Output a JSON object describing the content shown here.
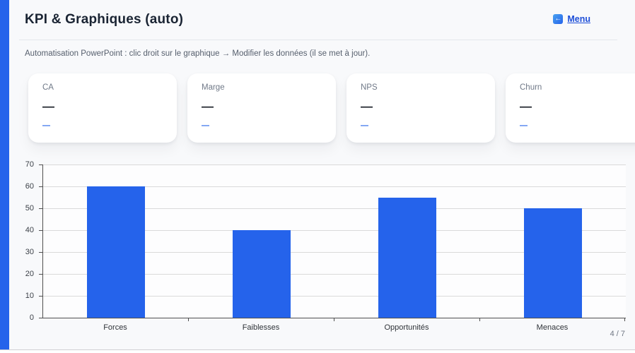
{
  "header": {
    "title": "KPI & Graphiques (auto)",
    "menu": {
      "label": "Menu",
      "icon_glyph": "←"
    }
  },
  "note": "Automatisation PowerPoint : clic droit sur le graphique → Modifier les données (il se met à jour).",
  "kpis": [
    {
      "label": "CA",
      "value": "—",
      "sub": "—"
    },
    {
      "label": "Marge",
      "value": "—",
      "sub": "—"
    },
    {
      "label": "NPS",
      "value": "—",
      "sub": "—"
    },
    {
      "label": "Churn",
      "value": "—",
      "sub": "—"
    }
  ],
  "chart_data": {
    "type": "bar",
    "categories": [
      "Forces",
      "Faiblesses",
      "Opportunités",
      "Menaces"
    ],
    "values": [
      60,
      40,
      55,
      50
    ],
    "title": "",
    "xlabel": "",
    "ylabel": "",
    "ylim": [
      0,
      70
    ],
    "ytick_step": 10,
    "grid": true,
    "legend": false,
    "bar_color": "#2563eb"
  },
  "footer": {
    "page_indicator": "4 / 7"
  },
  "colors": {
    "accent": "#2563eb",
    "page_bg": "#f8f9fb"
  }
}
